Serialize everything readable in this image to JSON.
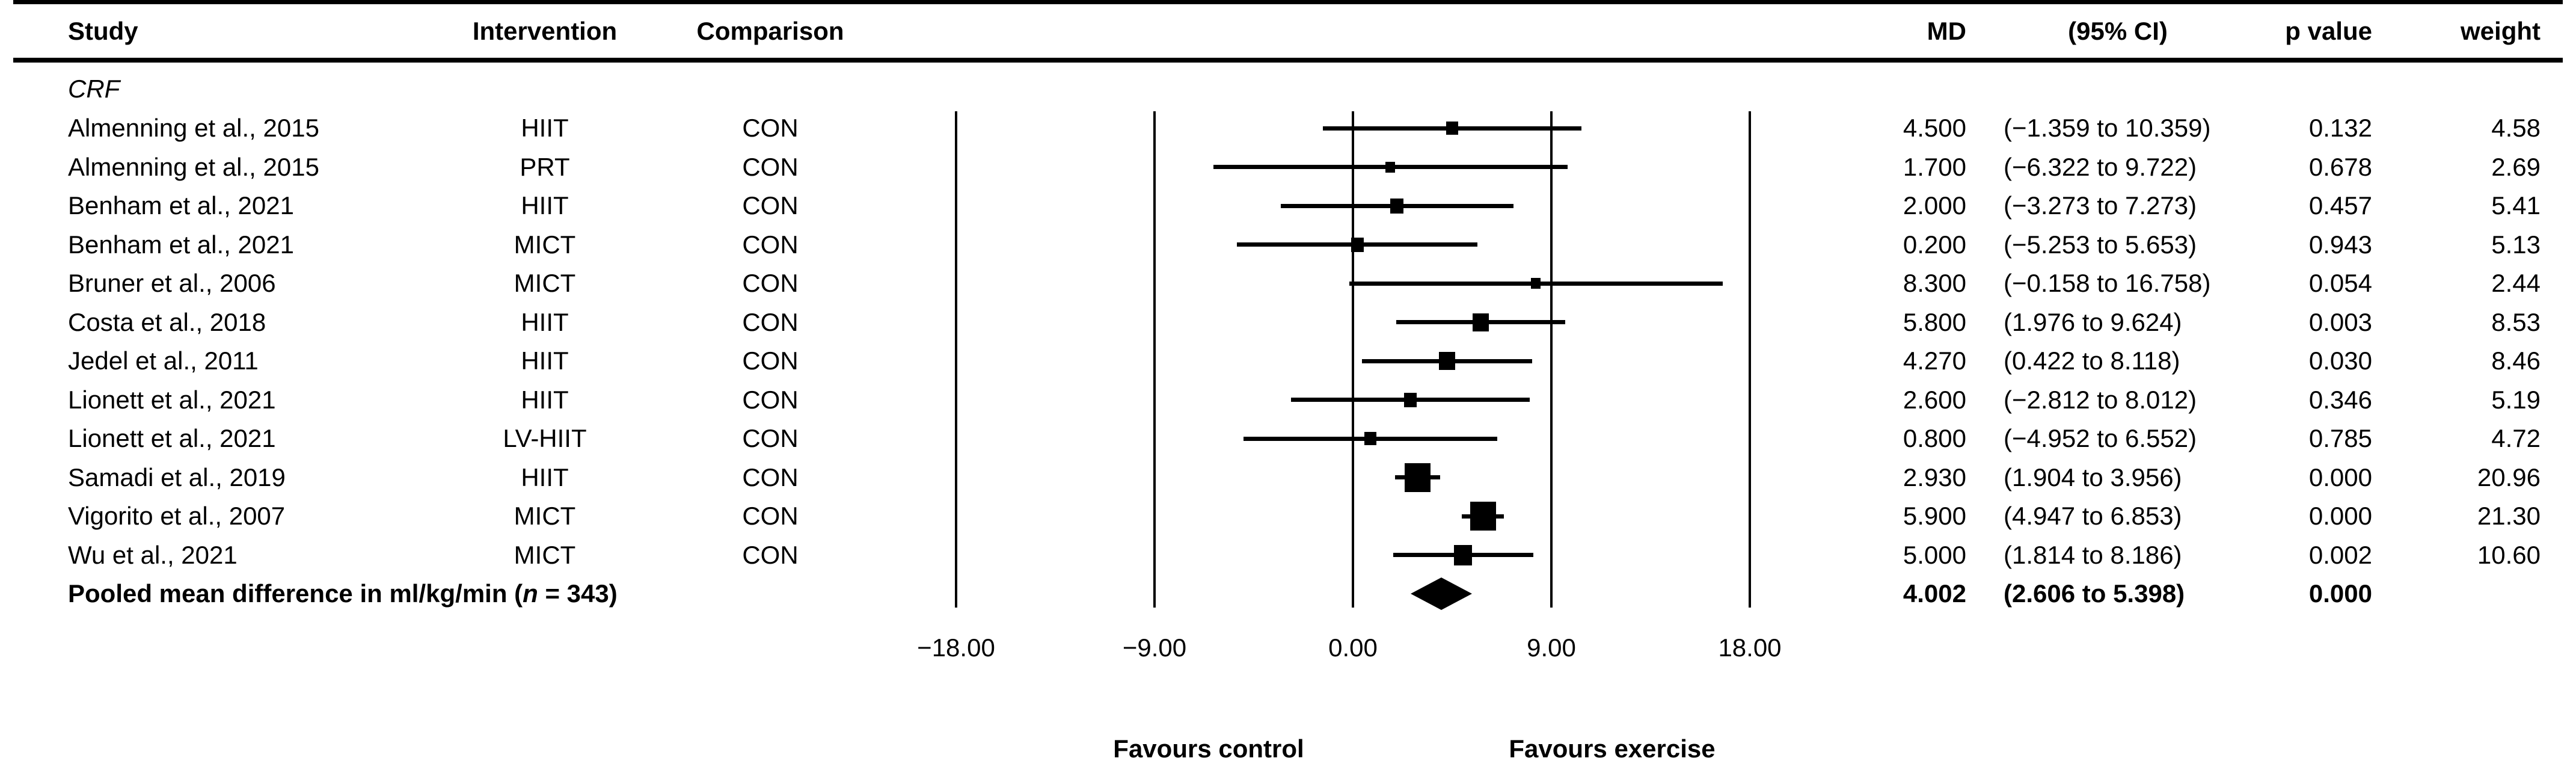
{
  "header": {
    "study": "Study",
    "intervention": "Intervention",
    "comparison": "Comparison",
    "md": "MD",
    "ci": "(95% CI)",
    "p": "p value",
    "weight": "weight"
  },
  "colors": {
    "foreground": "#000000",
    "background": "#ffffff"
  },
  "chart_data": {
    "type": "forest",
    "group_label": "CRF",
    "axis": {
      "min": -18,
      "max": 18,
      "ticks": [
        -18,
        -9,
        0,
        9,
        18
      ],
      "tick_labels": [
        "−18.00",
        "−9.00",
        "0.00",
        "9.00",
        "18.00"
      ],
      "gridlines": true
    },
    "footer_labels": {
      "left": "Favours control",
      "right": "Favours exercise"
    },
    "studies": [
      {
        "study": "Almenning et al., 2015",
        "intervention": "HIIT",
        "comparison": "CON",
        "md": 4.5,
        "ci_low": -1.359,
        "ci_high": 10.359,
        "md_text": "4.500",
        "ci_text": "(−1.359 to 10.359)",
        "p_text": "0.132",
        "weight": 4.58,
        "weight_text": "4.58"
      },
      {
        "study": "Almenning et al., 2015",
        "intervention": "PRT",
        "comparison": "CON",
        "md": 1.7,
        "ci_low": -6.322,
        "ci_high": 9.722,
        "md_text": "1.700",
        "ci_text": "(−6.322 to 9.722)",
        "p_text": "0.678",
        "weight": 2.69,
        "weight_text": "2.69"
      },
      {
        "study": "Benham et al., 2021",
        "intervention": "HIIT",
        "comparison": "CON",
        "md": 2.0,
        "ci_low": -3.273,
        "ci_high": 7.273,
        "md_text": "2.000",
        "ci_text": "(−3.273 to 7.273)",
        "p_text": "0.457",
        "weight": 5.41,
        "weight_text": "5.41"
      },
      {
        "study": "Benham et al., 2021",
        "intervention": "MICT",
        "comparison": "CON",
        "md": 0.2,
        "ci_low": -5.253,
        "ci_high": 5.653,
        "md_text": "0.200",
        "ci_text": "(−5.253 to 5.653)",
        "p_text": "0.943",
        "weight": 5.13,
        "weight_text": "5.13"
      },
      {
        "study": "Bruner et al., 2006",
        "intervention": "MICT",
        "comparison": "CON",
        "md": 8.3,
        "ci_low": -0.158,
        "ci_high": 16.758,
        "md_text": "8.300",
        "ci_text": "(−0.158 to 16.758)",
        "p_text": "0.054",
        "weight": 2.44,
        "weight_text": "2.44"
      },
      {
        "study": "Costa et al., 2018",
        "intervention": "HIIT",
        "comparison": "CON",
        "md": 5.8,
        "ci_low": 1.976,
        "ci_high": 9.624,
        "md_text": "5.800",
        "ci_text": "(1.976 to 9.624)",
        "p_text": "0.003",
        "weight": 8.53,
        "weight_text": "8.53"
      },
      {
        "study": "Jedel et al., 2011",
        "intervention": "HIIT",
        "comparison": "CON",
        "md": 4.27,
        "ci_low": 0.422,
        "ci_high": 8.118,
        "md_text": "4.270",
        "ci_text": "(0.422 to 8.118)",
        "p_text": "0.030",
        "weight": 8.46,
        "weight_text": "8.46"
      },
      {
        "study": "Lionett et al., 2021",
        "intervention": "HIIT",
        "comparison": "CON",
        "md": 2.6,
        "ci_low": -2.812,
        "ci_high": 8.012,
        "md_text": "2.600",
        "ci_text": "(−2.812 to 8.012)",
        "p_text": "0.346",
        "weight": 5.19,
        "weight_text": "5.19"
      },
      {
        "study": "Lionett et al., 2021",
        "intervention": "LV-HIIT",
        "comparison": "CON",
        "md": 0.8,
        "ci_low": -4.952,
        "ci_high": 6.552,
        "md_text": "0.800",
        "ci_text": "(−4.952 to 6.552)",
        "p_text": "0.785",
        "weight": 4.72,
        "weight_text": "4.72"
      },
      {
        "study": "Samadi et al., 2019",
        "intervention": "HIIT",
        "comparison": "CON",
        "md": 2.93,
        "ci_low": 1.904,
        "ci_high": 3.956,
        "md_text": "2.930",
        "ci_text": "(1.904 to 3.956)",
        "p_text": "0.000",
        "weight": 20.96,
        "weight_text": "20.96"
      },
      {
        "study": "Vigorito et al., 2007",
        "intervention": "MICT",
        "comparison": "CON",
        "md": 5.9,
        "ci_low": 4.947,
        "ci_high": 6.853,
        "md_text": "5.900",
        "ci_text": "(4.947 to 6.853)",
        "p_text": "0.000",
        "weight": 21.3,
        "weight_text": "21.30"
      },
      {
        "study": "Wu et al., 2021",
        "intervention": "MICT",
        "comparison": "CON",
        "md": 5.0,
        "ci_low": 1.814,
        "ci_high": 8.186,
        "md_text": "5.000",
        "ci_text": "(1.814 to 8.186)",
        "p_text": "0.002",
        "weight": 10.6,
        "weight_text": "10.60"
      }
    ],
    "pooled": {
      "label_prefix": "Pooled mean difference in ml/kg/min (",
      "label_n": "n",
      "label_suffix": " = 343)",
      "md": 4.002,
      "ci_low": 2.606,
      "ci_high": 5.398,
      "md_text": "4.002",
      "ci_text": "(2.606 to 5.398)",
      "p_text": "0.000"
    }
  }
}
